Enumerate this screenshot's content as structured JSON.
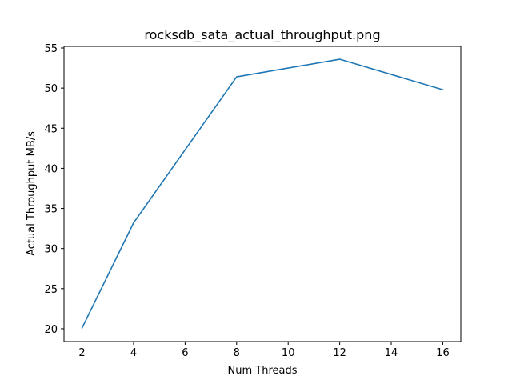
{
  "chart_data": {
    "type": "line",
    "title": "rocksdb_sata_actual_throughput.png",
    "xlabel": "Num Threads",
    "ylabel": "Actual Throughput MB/s",
    "xlim": [
      1.3,
      16.7
    ],
    "ylim": [
      18.4,
      55.2
    ],
    "xticks": [
      2,
      4,
      6,
      8,
      10,
      12,
      14,
      16
    ],
    "yticks": [
      20,
      25,
      30,
      35,
      40,
      45,
      50,
      55
    ],
    "grid": false,
    "series": [
      {
        "color": "#1f77b4",
        "x": [
          2,
          4,
          8,
          12,
          16
        ],
        "y": [
          20.1,
          33.2,
          51.4,
          53.6,
          49.8
        ]
      }
    ]
  }
}
